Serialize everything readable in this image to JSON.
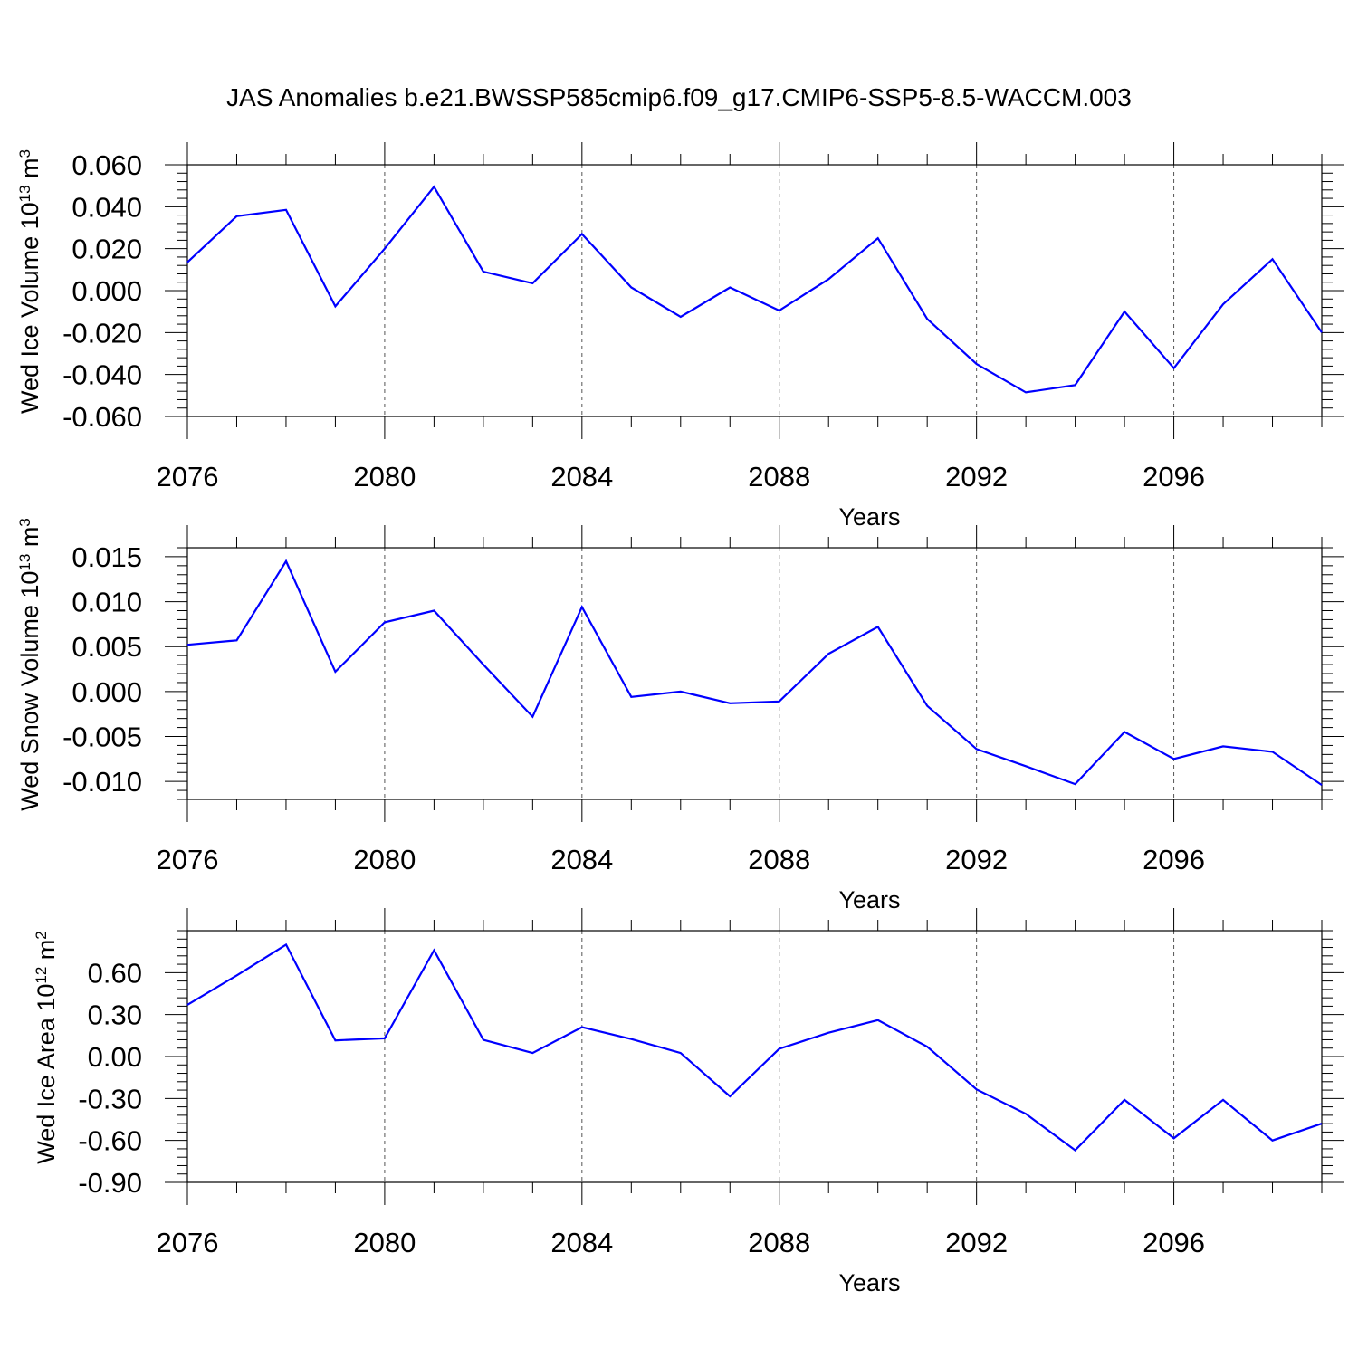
{
  "title": "JAS Anomalies b.e21.BWSSP585cmip6.f09_g17.CMIP6-SSP5-8.5-WACCM.003",
  "colors": {
    "series": "#0000ff",
    "axes": "#000000",
    "grid": "#555555"
  },
  "chart_data": [
    {
      "type": "line",
      "xlabel": "Years",
      "ylabel": "Wed Ice Volume 10",
      "ylabel_exp": "13",
      "ylabel_unit": " m",
      "ylabel_unit_exp": "3",
      "xlim": [
        2076,
        2099
      ],
      "ylim": [
        -0.06,
        0.06
      ],
      "x_ticks": [
        2076,
        2080,
        2084,
        2088,
        2092,
        2096
      ],
      "x_tick_labels": [
        "2076",
        "2080",
        "2084",
        "2088",
        "2092",
        "2096"
      ],
      "y_ticks": [
        -0.06,
        -0.04,
        -0.02,
        0.0,
        0.02,
        0.04,
        0.06
      ],
      "y_tick_labels": [
        "-0.060",
        "-0.040",
        "-0.020",
        "0.000",
        "0.020",
        "0.040",
        "0.060"
      ],
      "grid": "vertical dashed at major x ticks",
      "x": [
        2076,
        2077,
        2078,
        2079,
        2080,
        2081,
        2082,
        2083,
        2084,
        2085,
        2086,
        2087,
        2088,
        2089,
        2090,
        2091,
        2092,
        2093,
        2094,
        2095,
        2096,
        2097,
        2098,
        2099
      ],
      "y": [
        0.0135,
        0.0355,
        0.0385,
        -0.0075,
        0.02,
        0.0495,
        0.009,
        0.0035,
        0.027,
        0.0015,
        -0.0125,
        0.0015,
        -0.0095,
        0.0055,
        0.025,
        -0.0135,
        -0.035,
        -0.0485,
        -0.045,
        -0.01,
        -0.037,
        -0.0065,
        0.015,
        -0.02
      ]
    },
    {
      "type": "line",
      "xlabel": "Years",
      "ylabel": "Wed Snow Volume 10",
      "ylabel_exp": "13",
      "ylabel_unit": " m",
      "ylabel_unit_exp": "3",
      "xlim": [
        2076,
        2099
      ],
      "ylim": [
        -0.012,
        0.016
      ],
      "x_ticks": [
        2076,
        2080,
        2084,
        2088,
        2092,
        2096
      ],
      "x_tick_labels": [
        "2076",
        "2080",
        "2084",
        "2088",
        "2092",
        "2096"
      ],
      "y_ticks": [
        -0.01,
        -0.005,
        0.0,
        0.005,
        0.01,
        0.015
      ],
      "y_tick_labels": [
        "-0.010",
        "-0.005",
        "0.000",
        "0.005",
        "0.010",
        "0.015"
      ],
      "grid": "vertical dashed at major x ticks",
      "x": [
        2076,
        2077,
        2078,
        2079,
        2080,
        2081,
        2082,
        2083,
        2084,
        2085,
        2086,
        2087,
        2088,
        2089,
        2090,
        2091,
        2092,
        2093,
        2094,
        2095,
        2096,
        2097,
        2098,
        2099
      ],
      "y": [
        0.0052,
        0.0057,
        0.0145,
        0.0022,
        0.0077,
        0.009,
        0.003,
        -0.0028,
        0.0094,
        -0.0006,
        0.0,
        -0.0013,
        -0.0011,
        0.0042,
        0.0072,
        -0.0016,
        -0.0064,
        -0.0083,
        -0.0103,
        -0.0045,
        -0.0075,
        -0.0061,
        -0.0067,
        -0.0104
      ]
    },
    {
      "type": "line",
      "xlabel": "Years",
      "ylabel": "Wed Ice Area 10",
      "ylabel_exp": "12",
      "ylabel_unit": " m",
      "ylabel_unit_exp": "2",
      "xlim": [
        2076,
        2099
      ],
      "ylim": [
        -0.9,
        0.9
      ],
      "x_ticks": [
        2076,
        2080,
        2084,
        2088,
        2092,
        2096
      ],
      "x_tick_labels": [
        "2076",
        "2080",
        "2084",
        "2088",
        "2092",
        "2096"
      ],
      "y_ticks": [
        -0.9,
        -0.6,
        -0.3,
        0.0,
        0.3,
        0.6
      ],
      "y_tick_labels": [
        "-0.90",
        "-0.60",
        "-0.30",
        "0.00",
        "0.30",
        "0.60"
      ],
      "grid": "vertical dashed at major x ticks",
      "x": [
        2076,
        2077,
        2078,
        2079,
        2080,
        2081,
        2082,
        2083,
        2084,
        2085,
        2086,
        2087,
        2088,
        2089,
        2090,
        2091,
        2092,
        2093,
        2094,
        2095,
        2096,
        2097,
        2098,
        2099
      ],
      "y": [
        0.37,
        0.58,
        0.8,
        0.115,
        0.13,
        0.76,
        0.12,
        0.025,
        0.21,
        0.125,
        0.025,
        -0.285,
        0.055,
        0.17,
        0.26,
        0.07,
        -0.235,
        -0.41,
        -0.67,
        -0.31,
        -0.585,
        -0.31,
        -0.6,
        -0.48
      ]
    }
  ]
}
